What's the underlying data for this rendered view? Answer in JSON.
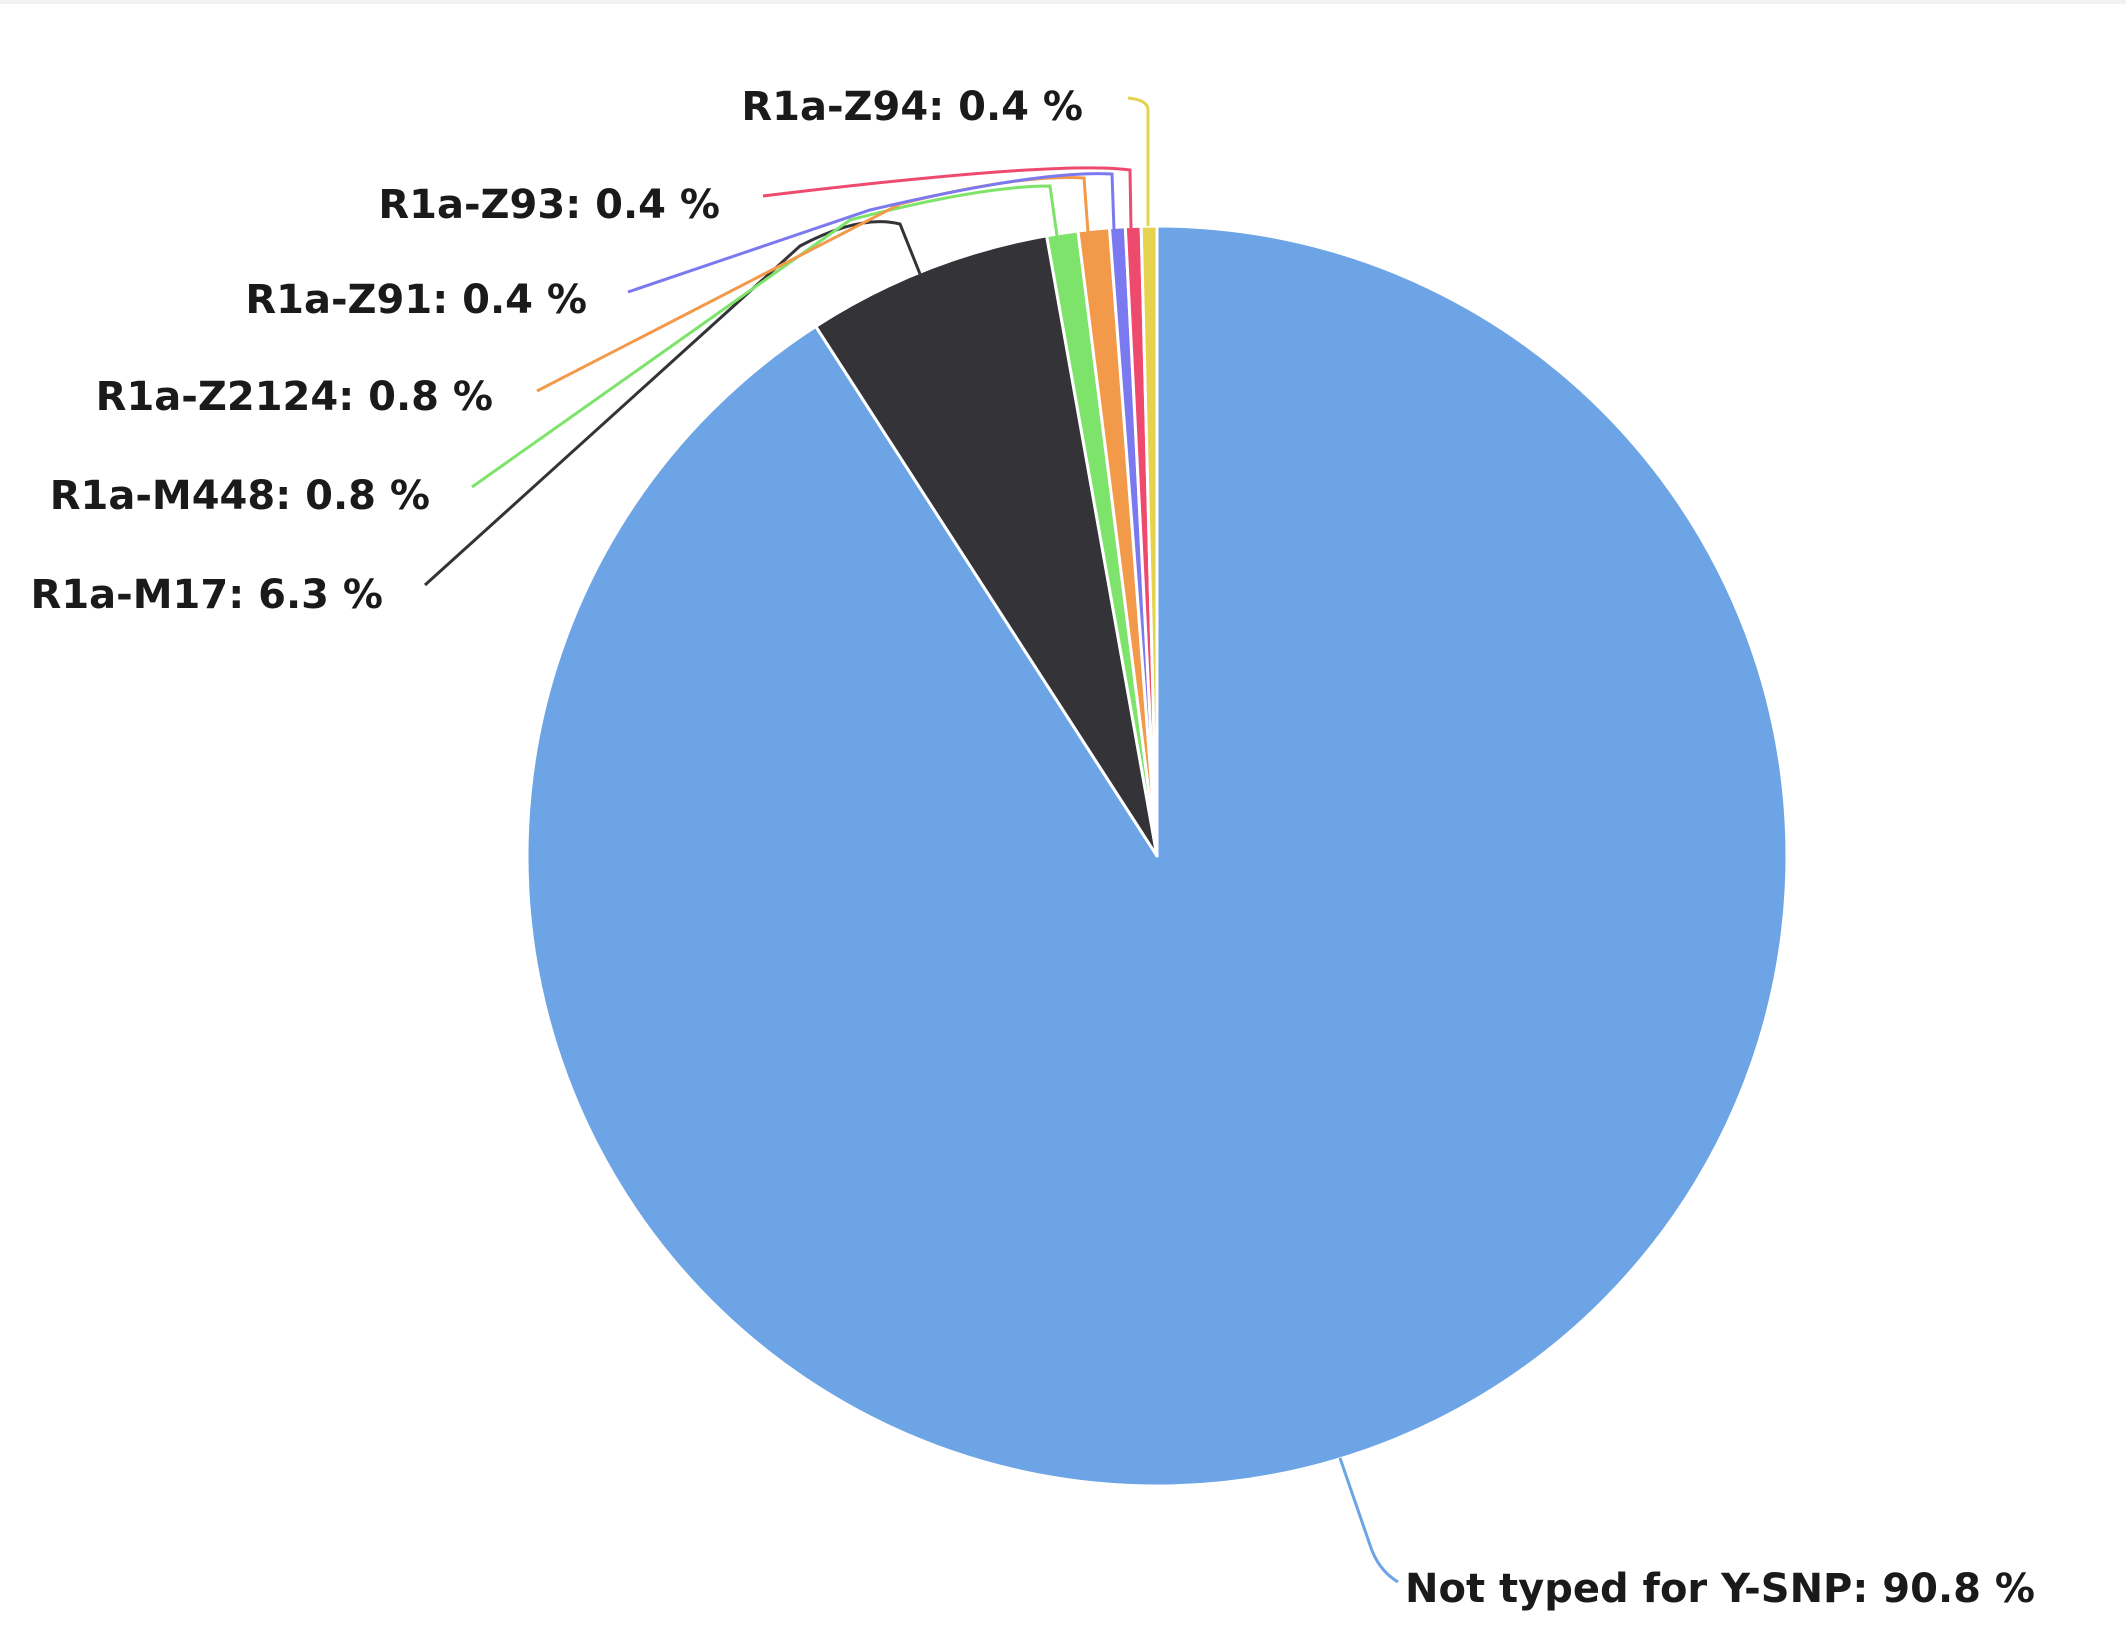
{
  "chart_data": {
    "type": "pie",
    "start_angle_deg": 0,
    "direction": "clockwise",
    "slices": [
      {
        "name": "Not typed for Y-SNP",
        "value": 90.8,
        "label": "Not typed for Y-SNP: 90.8 %",
        "color": "#6ca4e6"
      },
      {
        "name": "R1a-M17",
        "value": 6.3,
        "label": "R1a-M17: 6.3 %",
        "color": "#333338"
      },
      {
        "name": "R1a-M448",
        "value": 0.8,
        "label": "R1a-M448: 0.8 %",
        "color": "#7ee36a"
      },
      {
        "name": "R1a-Z2124",
        "value": 0.8,
        "label": "R1a-Z2124: 0.8 %",
        "color": "#f3994a"
      },
      {
        "name": "R1a-Z91",
        "value": 0.4,
        "label": "R1a-Z91: 0.4 %",
        "color": "#7b79ef"
      },
      {
        "name": "R1a-Z93",
        "value": 0.4,
        "label": "R1a-Z93: 0.4 %",
        "color": "#ee4a6e"
      },
      {
        "name": "R1a-Z94",
        "value": 0.4,
        "label": "R1a-Z94: 0.4 %",
        "color": "#e5d24f"
      }
    ]
  }
}
